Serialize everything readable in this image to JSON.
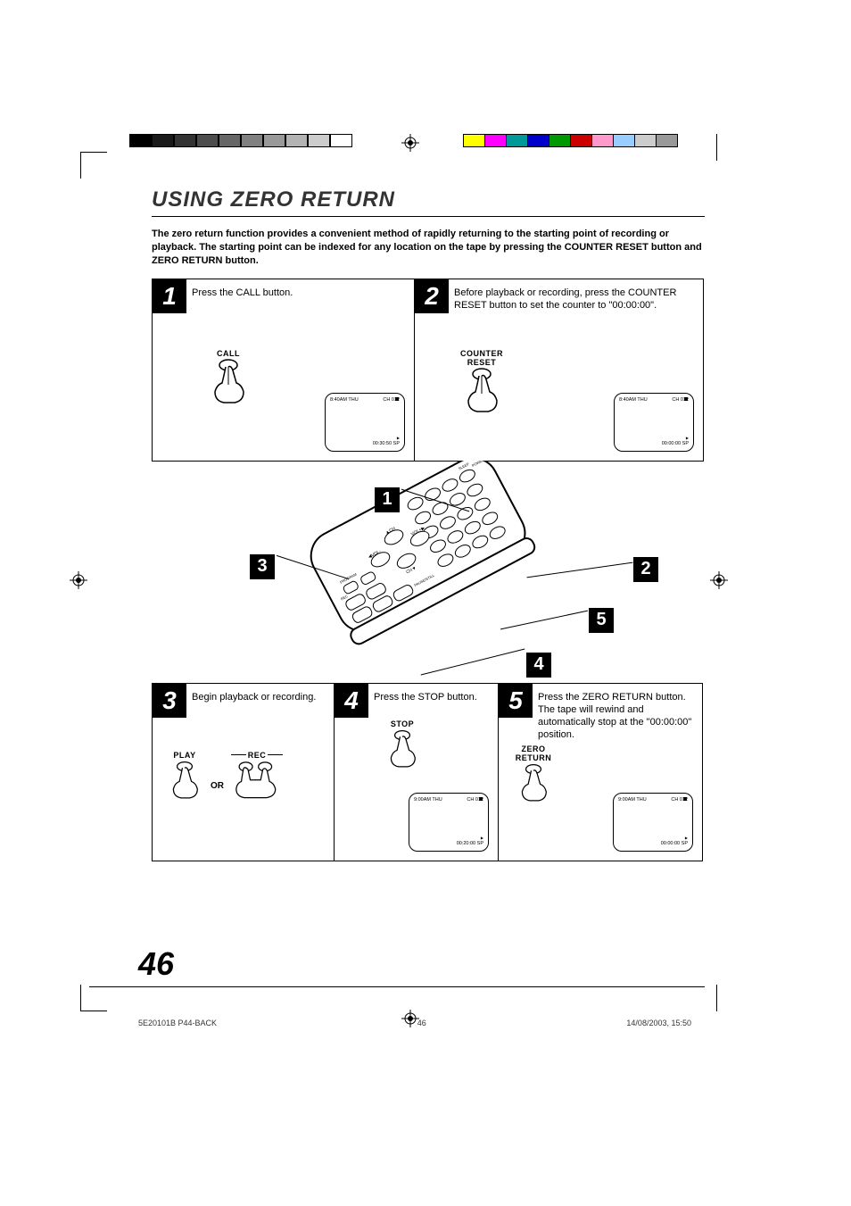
{
  "title": "USING ZERO RETURN",
  "intro": "The zero return function provides a convenient method of rapidly returning to the starting point of recording or playback. The starting point can be indexed for any location on the tape by pressing the COUNTER RESET button and ZERO RETURN button.",
  "steps": {
    "s1": {
      "num": "1",
      "text": "Press the CALL button.",
      "button": "CALL",
      "lcd": {
        "time": "8:40AM THU",
        "ch": "CH 012",
        "counter": "00:30:50",
        "mode": "SP"
      }
    },
    "s2": {
      "num": "2",
      "text": "Before playback or recording, press the COUNTER RESET button to set the counter to \"00:00:00\".",
      "button": "COUNTER\nRESET",
      "lcd": {
        "time": "8:40AM THU",
        "ch": "CH 012",
        "counter": "00:00:00",
        "mode": "SP"
      }
    },
    "s3": {
      "num": "3",
      "text": "Begin playback or recording.",
      "button1": "PLAY",
      "or": "OR",
      "button2": "REC"
    },
    "s4": {
      "num": "4",
      "text": "Press the STOP button.",
      "button": "STOP",
      "lcd": {
        "time": "9:00AM THU",
        "ch": "CH 012",
        "counter": "00:20:00",
        "mode": "SP"
      }
    },
    "s5": {
      "num": "5",
      "text": "Press the ZERO RETURN button. The tape will rewind and automatically stop at the \"00:00:00\" position.",
      "button": "ZERO\nRETURN",
      "lcd": {
        "time": "9:00AM THU",
        "ch": "CH 012",
        "counter": "00:00:00",
        "mode": "SP"
      }
    }
  },
  "callouts": {
    "c1": "1",
    "c2": "2",
    "c3": "3",
    "c4": "4",
    "c5": "5"
  },
  "page_number": "46",
  "footer": {
    "doc": "5E20101B P44-BACK",
    "page": "46",
    "date": "14/08/2003, 15:50"
  },
  "gray_bar": [
    "#000000",
    "#1a1a1a",
    "#333333",
    "#4d4d4d",
    "#666666",
    "#808080",
    "#999999",
    "#b3b3b3",
    "#cccccc",
    "#ffffff"
  ],
  "color_bar": [
    "#ffff00",
    "#ff00ff",
    "#009999",
    "#0000cc",
    "#009900",
    "#cc0000",
    "#ff99cc",
    "#99ccff",
    "#cccccc",
    "#999999"
  ]
}
